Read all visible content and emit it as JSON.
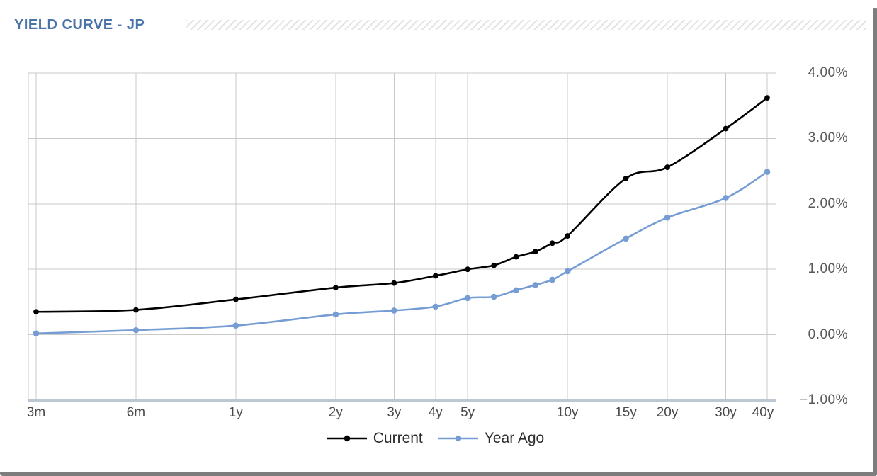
{
  "window": {
    "title": "YIELD CURVE - JP"
  },
  "chart_data": {
    "type": "line",
    "title": "YIELD CURVE - JP",
    "x_scale": "log",
    "xlabel": "",
    "ylabel": "",
    "categories": [
      "3m",
      "6m",
      "1y",
      "2y",
      "3y",
      "4y",
      "5y",
      "10y",
      "15y",
      "20y",
      "30y",
      "40y"
    ],
    "category_maturities_years": [
      0.25,
      0.5,
      1,
      2,
      3,
      4,
      5,
      10,
      15,
      20,
      30,
      40
    ],
    "maturities_years": [
      0.25,
      0.5,
      1,
      2,
      3,
      4,
      5,
      6,
      7,
      8,
      9,
      10,
      15,
      20,
      30,
      40
    ],
    "series": [
      {
        "name": "Current",
        "color": "#000000",
        "values": [
          0.35,
          0.38,
          0.54,
          0.72,
          0.79,
          0.9,
          1.0,
          1.06,
          1.19,
          1.27,
          1.4,
          1.51,
          2.39,
          2.56,
          3.15,
          3.62
        ]
      },
      {
        "name": "Year Ago",
        "color": "#759dd4",
        "values": [
          0.02,
          0.07,
          0.14,
          0.31,
          0.37,
          0.43,
          0.56,
          0.58,
          0.68,
          0.76,
          0.84,
          0.97,
          1.47,
          1.79,
          2.09,
          2.49
        ]
      }
    ],
    "ylim": [
      -1,
      4
    ],
    "yticks": [
      4,
      3,
      2,
      1,
      0,
      -1
    ],
    "ytick_labels": [
      "4.00%",
      "3.00%",
      "2.00%",
      "1.00%",
      "0.00%",
      "−1.00%"
    ],
    "grid": true,
    "line_smoothing": true,
    "legend_position": "bottom"
  },
  "colors": {
    "title": "#4a73a7",
    "gridline": "#c9c9c9",
    "axis_line": "#bdc7d2",
    "y_label": "#595959",
    "x_label": "#4a4a4a",
    "frame": "#7d7d7d",
    "hatch_stripe": "#e3e3e3"
  }
}
